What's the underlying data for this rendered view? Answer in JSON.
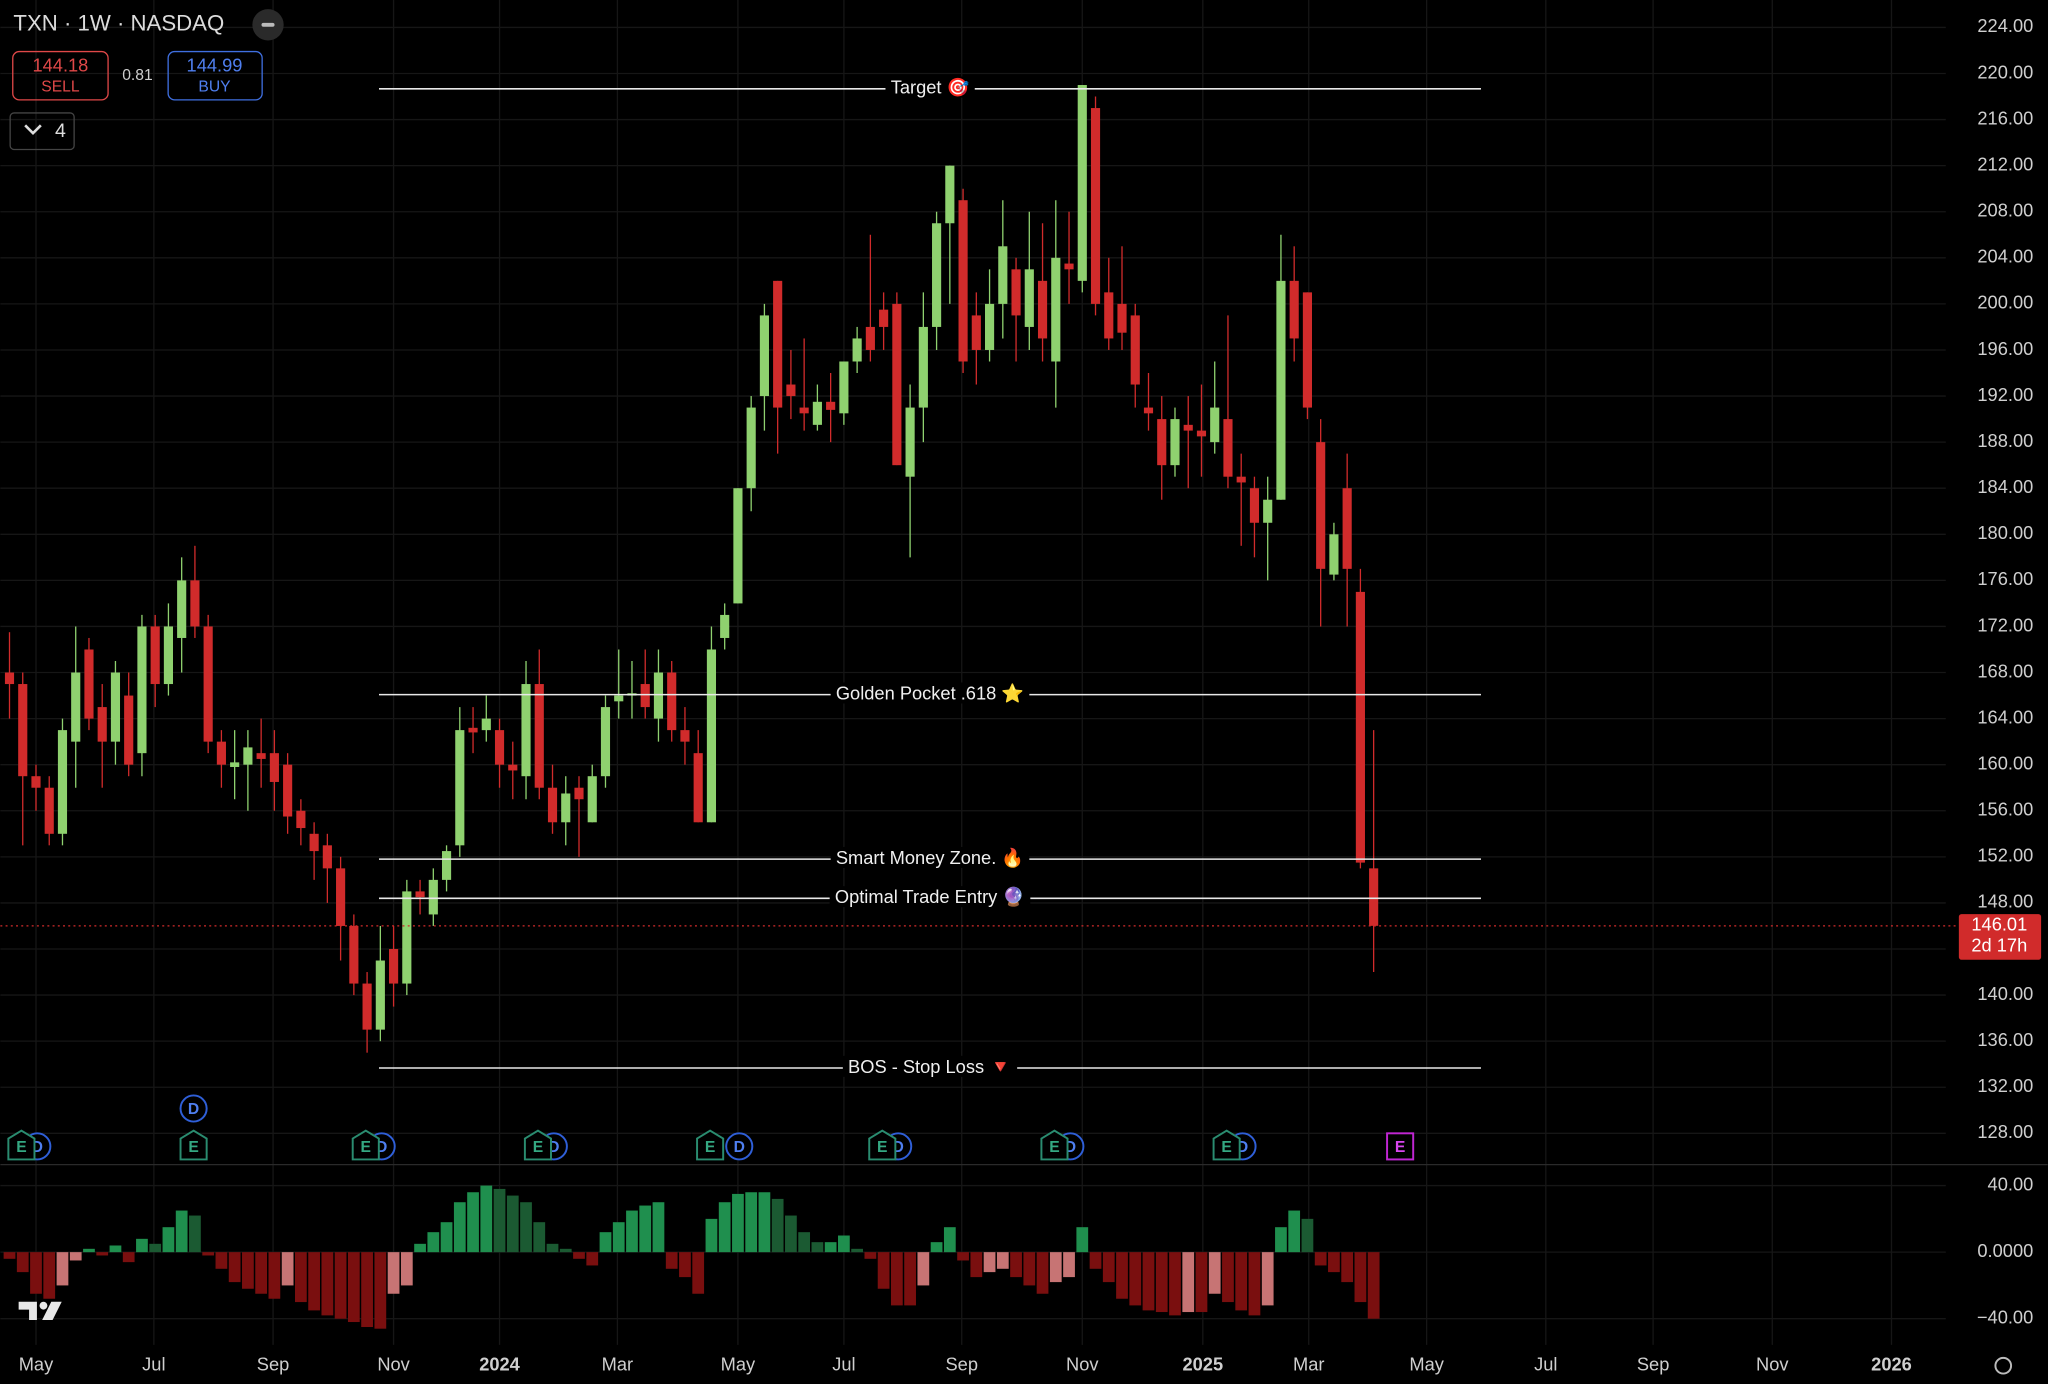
{
  "header": {
    "symbol": "TXN · 1W · NASDAQ",
    "sell_price": "144.18",
    "sell_label": "SELL",
    "spread": "0.81",
    "buy_price": "144.99",
    "buy_label": "BUY",
    "indicator_count": "4"
  },
  "chart_data": [
    {
      "type": "candlestick",
      "up_color": "#8fd16f",
      "down_color": "#d12b2b",
      "xlim": [
        -0.69,
        146.2
      ],
      "xticks": [
        {
          "value": 2.0,
          "label": "May"
        },
        {
          "value": 10.9,
          "label": "Jul"
        },
        {
          "value": 19.9,
          "label": "Sep"
        },
        {
          "value": 29.0,
          "label": "Nov"
        },
        {
          "value": 37.0,
          "label": "2024"
        },
        {
          "value": 45.9,
          "label": "Mar"
        },
        {
          "value": 55.0,
          "label": "May"
        },
        {
          "value": 63.0,
          "label": "Jul"
        },
        {
          "value": 71.9,
          "label": "Sep"
        },
        {
          "value": 81.0,
          "label": "Nov"
        },
        {
          "value": 90.1,
          "label": "2025"
        },
        {
          "value": 98.1,
          "label": "Mar"
        },
        {
          "value": 107.0,
          "label": "May"
        },
        {
          "value": 116.0,
          "label": "Jul"
        },
        {
          "value": 124.1,
          "label": "Sep"
        },
        {
          "value": 133.1,
          "label": "Nov"
        },
        {
          "value": 142.1,
          "label": "2026"
        }
      ],
      "ylim": [
        125.28,
        226.38
      ],
      "yticks": [
        {
          "value": 128,
          "label": "128.00"
        },
        {
          "value": 132,
          "label": "132.00"
        },
        {
          "value": 136,
          "label": "136.00"
        },
        {
          "value": 140,
          "label": "140.00"
        },
        {
          "value": 144,
          "label": "144.00"
        },
        {
          "value": 148,
          "label": "148.00"
        },
        {
          "value": 152,
          "label": "152.00"
        },
        {
          "value": 156,
          "label": "156.00"
        },
        {
          "value": 160,
          "label": "160.00"
        },
        {
          "value": 164,
          "label": "164.00"
        },
        {
          "value": 168,
          "label": "168.00"
        },
        {
          "value": 172,
          "label": "172.00"
        },
        {
          "value": 176,
          "label": "176.00"
        },
        {
          "value": 180,
          "label": "180.00"
        },
        {
          "value": 184,
          "label": "184.00"
        },
        {
          "value": 188,
          "label": "188.00"
        },
        {
          "value": 192,
          "label": "192.00"
        },
        {
          "value": 196,
          "label": "196.00"
        },
        {
          "value": 200,
          "label": "200.00"
        },
        {
          "value": 204,
          "label": "204.00"
        },
        {
          "value": 208,
          "label": "208.00"
        },
        {
          "value": 212,
          "label": "212.00"
        },
        {
          "value": 216,
          "label": "216.00"
        },
        {
          "value": 220,
          "label": "220.00"
        },
        {
          "value": 224,
          "label": "224.00"
        }
      ],
      "grid": true,
      "open": [
        168,
        167,
        159,
        158,
        154,
        162,
        170,
        165,
        162,
        166,
        161,
        172,
        167,
        171,
        176,
        172,
        162,
        159.8,
        160,
        161,
        161,
        160,
        156,
        154,
        153,
        151,
        146,
        141,
        137,
        144,
        141,
        149,
        147,
        150,
        153,
        163.2,
        163,
        163,
        160,
        159,
        167,
        158,
        155,
        158,
        155,
        159,
        165.5,
        166,
        167,
        164,
        168,
        163,
        161,
        155,
        171,
        174,
        184,
        192,
        202,
        193,
        191,
        189.5,
        191.5,
        190.5,
        195,
        198,
        199.5,
        200,
        185,
        191,
        198,
        207,
        209,
        199,
        196,
        200,
        203,
        198,
        202,
        195,
        203.5,
        202,
        217,
        201,
        200,
        199,
        191,
        190,
        186,
        189.5,
        189,
        188,
        190,
        185,
        184,
        181,
        183,
        202,
        201,
        188,
        176.5,
        184,
        175,
        151
      ],
      "high": [
        171.5,
        168,
        160,
        159,
        164,
        172,
        171,
        167,
        169,
        168,
        173,
        173,
        174,
        178,
        179,
        173,
        163,
        163,
        163,
        164,
        163,
        161,
        157,
        155,
        154,
        152,
        147,
        142,
        146,
        146,
        150,
        150,
        151,
        153,
        165,
        165,
        166,
        164,
        162,
        169,
        170,
        160,
        159,
        159,
        160,
        166,
        170,
        169,
        170,
        170,
        169,
        165,
        163,
        172,
        174,
        184,
        192,
        200,
        202,
        196,
        197,
        193,
        194,
        195,
        198,
        206,
        201,
        201,
        193,
        201,
        208,
        212,
        210,
        201,
        203,
        209,
        204,
        208,
        207,
        209,
        208,
        219,
        218,
        204,
        205,
        200,
        194,
        192,
        191,
        192,
        193,
        195,
        199,
        187,
        185,
        185,
        206,
        205,
        201,
        190,
        181,
        187,
        177,
        163
      ],
      "low": [
        164,
        153,
        156,
        153,
        153,
        158,
        163,
        158,
        160,
        159,
        159,
        165,
        166,
        168,
        171,
        161,
        158,
        157,
        156,
        158,
        156,
        154,
        153,
        150,
        148,
        143,
        140,
        135,
        136,
        139,
        140,
        147,
        146,
        149,
        152,
        161,
        162,
        158,
        157,
        157,
        157,
        154,
        153,
        152,
        155,
        158,
        164,
        164,
        164,
        162,
        162,
        160,
        155,
        155,
        170,
        174,
        182,
        189,
        187,
        190,
        189,
        189,
        188,
        189.5,
        194,
        195,
        196,
        186,
        178,
        188,
        196,
        200,
        194,
        193,
        195,
        197,
        195,
        196,
        195,
        191,
        200,
        201,
        199,
        196,
        196,
        191,
        189,
        183,
        185,
        184,
        185,
        187,
        184,
        179,
        178,
        176,
        183,
        195,
        190,
        172,
        176,
        172,
        151,
        142
      ],
      "close": [
        167,
        159,
        158,
        154,
        163,
        168,
        164,
        162,
        168,
        160,
        172,
        167,
        172,
        176,
        172,
        162,
        160,
        160.2,
        161.5,
        160.5,
        158.5,
        155.5,
        154.5,
        152.5,
        151,
        146,
        141,
        137,
        143,
        141,
        149,
        148.5,
        150,
        152.5,
        163,
        162.8,
        164,
        160,
        159.5,
        167,
        158,
        155,
        157.5,
        157,
        159,
        165,
        166,
        166.2,
        165,
        168,
        163,
        162,
        155,
        170,
        173,
        184,
        191,
        199,
        191,
        192,
        190.5,
        191.5,
        190.8,
        195,
        197,
        196,
        198,
        186,
        191,
        198,
        207,
        212,
        195,
        196,
        200,
        205,
        199,
        203,
        197,
        204,
        203,
        219,
        200,
        197,
        197.5,
        193,
        190.5,
        186,
        190,
        189,
        188.5,
        191,
        185,
        184.5,
        181,
        183,
        202,
        197,
        191,
        177,
        180,
        177,
        151.5,
        146.01
      ],
      "levels": [
        {
          "label": "Target 🎯",
          "value": 218.67
        },
        {
          "label": "Golden Pocket .618 ⭐",
          "value": 166.08
        },
        {
          "label": "Smart Money Zone. 🔥",
          "value": 151.8
        },
        {
          "label": "Optimal Trade Entry 🔮",
          "value": 148.4
        },
        {
          "label": "BOS - Stop Loss 🔻",
          "value": 133.67
        }
      ],
      "last_price": 146.01,
      "countdown": "2d 17h",
      "last_price_color": "#d12b2b",
      "earnings": {
        "label": "E",
        "x": [
          0.9,
          13.9,
          26.9,
          39.9,
          52.9,
          65.9,
          78.9,
          91.9,
          105.0
        ]
      },
      "dividends": {
        "label": "D",
        "x": [
          2.1,
          13.9,
          28.1,
          41.1,
          55.1,
          67.1,
          80.1,
          93.1
        ]
      }
    },
    {
      "type": "histogram",
      "ylim": [
        -55.7,
        51.8
      ],
      "yticks": [
        {
          "value": -40,
          "label": "−40.00"
        },
        {
          "value": 0,
          "label": "0.0000"
        },
        {
          "value": 40,
          "label": "40.00"
        }
      ],
      "colors": {
        "rising_positive": "#1f8f4e",
        "falling_positive": "#1b5a32",
        "rising_negative": "#c77474",
        "falling_negative": "#7a0f0f"
      },
      "values": [
        -4,
        -12,
        -25,
        -28,
        -20,
        -5,
        2,
        -2,
        4,
        -6,
        8,
        5,
        15,
        25,
        22,
        -2,
        -10,
        -18,
        -22,
        -25,
        -28,
        -20,
        -30,
        -35,
        -38,
        -40,
        -42,
        -45,
        -46,
        -25,
        -20,
        5,
        12,
        18,
        30,
        36,
        40,
        38,
        34,
        30,
        18,
        5,
        2,
        -4,
        -8,
        12,
        18,
        25,
        28,
        30,
        -10,
        -15,
        -25,
        20,
        30,
        35,
        36,
        36,
        32,
        22,
        12,
        6,
        6,
        10,
        2,
        -4,
        -22,
        -32,
        -32,
        -20,
        6,
        15,
        -5,
        -15,
        -12,
        -10,
        -15,
        -20,
        -25,
        -18,
        -15,
        15,
        -10,
        -18,
        -28,
        -32,
        -35,
        -36,
        -38,
        -36,
        -36,
        -25,
        -30,
        -35,
        -38,
        -32,
        15,
        25,
        20,
        -8,
        -12,
        -18,
        -30,
        -40
      ]
    }
  ]
}
